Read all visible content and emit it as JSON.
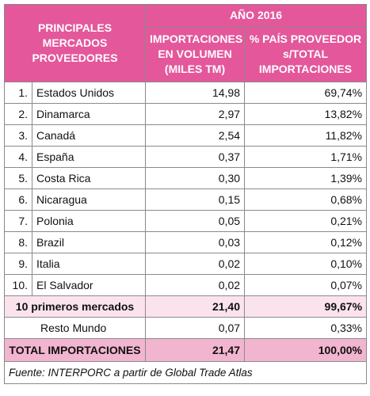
{
  "header": {
    "col1": [
      "PRINCIPALES",
      "MERCADOS",
      "PROVEEDORES"
    ],
    "year": "AÑO 2016",
    "col2": [
      "IMPORTACIONES",
      "EN VOLUMEN",
      "(MILES TM)"
    ],
    "col3": [
      "% PAÍS PROVEEDOR",
      "s/TOTAL",
      "IMPORTACIONES"
    ]
  },
  "rows": [
    [
      "1.",
      "Estados Unidos",
      "14,98",
      "69,74%"
    ],
    [
      "2.",
      "Dinamarca",
      "2,97",
      "13,82%"
    ],
    [
      "3.",
      "Canadá",
      "2,54",
      "11,82%"
    ],
    [
      "4.",
      "España",
      "0,37",
      "1,71%"
    ],
    [
      "5.",
      "Costa Rica",
      "0,30",
      "1,39%"
    ],
    [
      "6.",
      "Nicaragua",
      "0,15",
      "0,68%"
    ],
    [
      "7.",
      "Polonia",
      "0,05",
      "0,21%"
    ],
    [
      "8.",
      "Brazil",
      "0,03",
      "0,12%"
    ],
    [
      "9.",
      "Italia",
      "0,02",
      "0,10%"
    ],
    [
      "10.",
      "El Salvador",
      "0,02",
      "0,07%"
    ]
  ],
  "subtotal": [
    "10 primeros mercados",
    "21,40",
    "99,67%"
  ],
  "rest": [
    "Resto Mundo",
    "0,07",
    "0,33%"
  ],
  "total": [
    "TOTAL IMPORTACIONES",
    "21,47",
    "100,00%"
  ],
  "source": "Fuente: INTERPORC a partir de Global Trade Atlas"
}
